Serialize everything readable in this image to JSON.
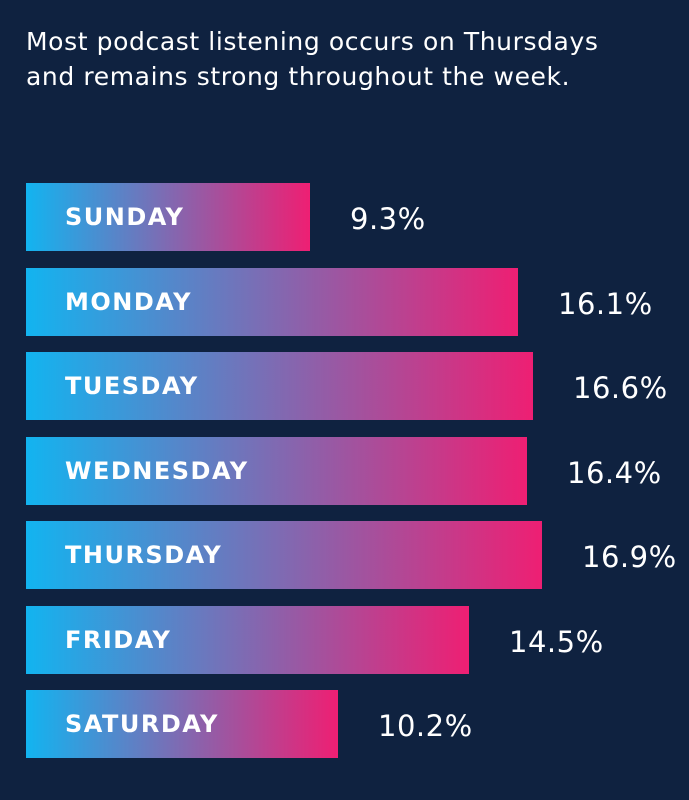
{
  "chart_data": {
    "type": "bar",
    "orientation": "horizontal",
    "title": "Most podcast listening occurs on Thursdays and remains strong throughout the week.",
    "categories": [
      "SUNDAY",
      "MONDAY",
      "TUESDAY",
      "WEDNESDAY",
      "THURSDAY",
      "FRIDAY",
      "SATURDAY"
    ],
    "values": [
      9.3,
      16.1,
      16.6,
      16.4,
      16.9,
      14.5,
      10.2
    ],
    "value_labels": [
      "9.3%",
      "16.1%",
      "16.6%",
      "16.4%",
      "16.9%",
      "14.5%",
      "10.2%"
    ],
    "unit": "%",
    "xlim": [
      0,
      20.3
    ],
    "grid": false,
    "legend": "none",
    "colors": {
      "background": "#0f2240",
      "gradient_start": "#12b4f0",
      "gradient_end": "#ee1f73",
      "text": "#ffffff"
    }
  }
}
